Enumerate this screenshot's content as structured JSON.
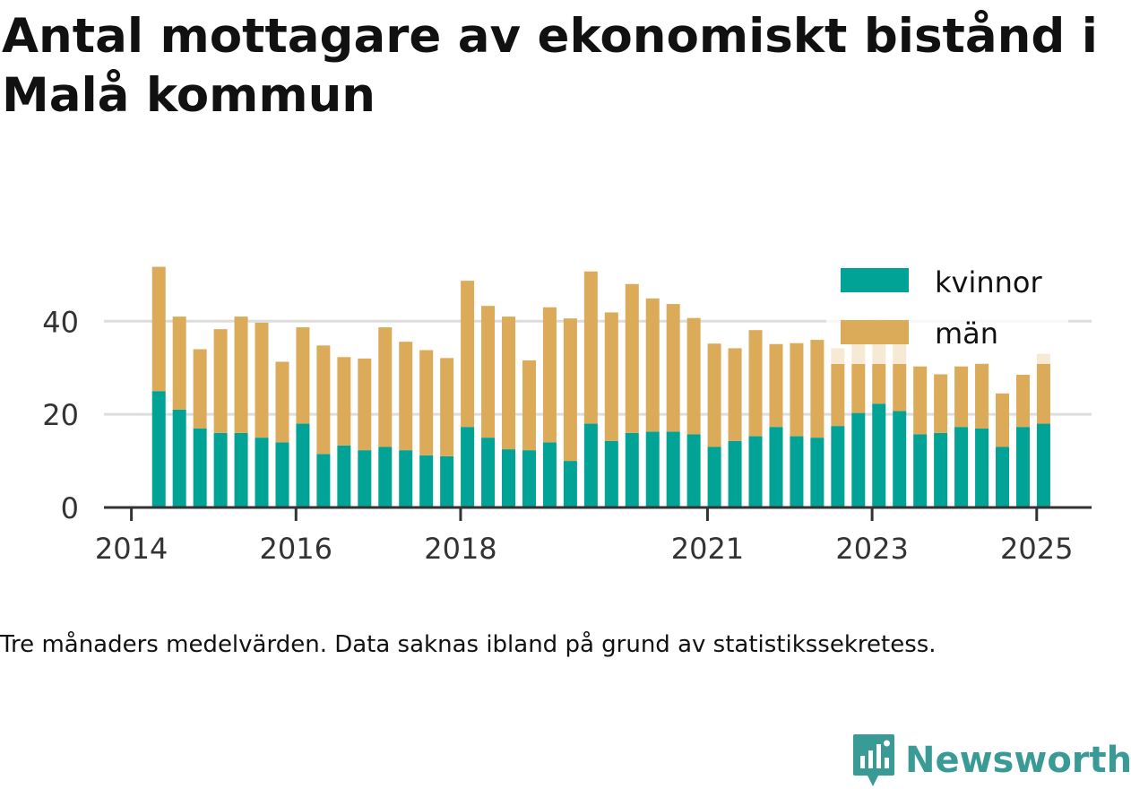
{
  "title": "Antal mottagare av ekonomiskt bistånd i Malå kommun",
  "note": "Tre månaders medelvärden. Data saknas ibland på grund av statistikssekretess.",
  "brand": {
    "name": "Newsworthy",
    "icon": "newsworthy-logo-icon"
  },
  "colors": {
    "kvinnor": "#00a396",
    "man": "#dcab5a",
    "faded": "#f8ecda",
    "grid": "#dddddd",
    "axis": "#333333"
  },
  "legend": {
    "kvinnor_label": "kvinnor",
    "man_label": "män"
  },
  "chart_data": {
    "type": "bar",
    "stacked": true,
    "legend_position": "top-right",
    "grid": true,
    "y_ticks": [
      "0",
      "20",
      "40"
    ],
    "x_ticks": [
      {
        "label": "2014",
        "date": "2014-01"
      },
      {
        "label": "2016",
        "date": "2016-01"
      },
      {
        "label": "2018",
        "date": "2018-01"
      },
      {
        "label": "2021",
        "date": "2021-01"
      },
      {
        "label": "2023",
        "date": "2023-01"
      },
      {
        "label": "2025",
        "date": "2025-01"
      }
    ],
    "ylim": [
      0,
      52
    ],
    "x_range": [
      "2013-09",
      "2025-09"
    ],
    "periods": [
      "2014-05",
      "2014-08",
      "2014-11",
      "2015-02",
      "2015-05",
      "2015-08",
      "2015-11",
      "2016-02",
      "2016-05",
      "2016-08",
      "2016-11",
      "2017-02",
      "2017-05",
      "2017-08",
      "2017-11",
      "2018-02",
      "2018-05",
      "2018-08",
      "2018-11",
      "2019-02",
      "2019-05",
      "2019-08",
      "2019-11",
      "2020-02",
      "2020-05",
      "2020-08",
      "2020-11",
      "2021-02",
      "2021-05",
      "2021-08",
      "2021-11",
      "2022-02",
      "2022-05",
      "2022-08",
      "2022-11",
      "2023-02",
      "2023-05",
      "2023-08",
      "2023-11",
      "2024-02",
      "2024-05",
      "2024-08",
      "2024-11",
      "2025-02"
    ],
    "series": [
      {
        "name": "kvinnor",
        "values": [
          25,
          21,
          17,
          16,
          16,
          15,
          14,
          18,
          11.5,
          13.3,
          12.3,
          13,
          12.3,
          11.2,
          11,
          17.3,
          15,
          12.5,
          12.3,
          14,
          10,
          18,
          14.3,
          16,
          16.3,
          16.3,
          15.7,
          13,
          14.3,
          15.3,
          17.3,
          15.3,
          15,
          17.5,
          20.3,
          22.3,
          20.7,
          15.7,
          16,
          17.3,
          17,
          13,
          17.3,
          18
        ]
      },
      {
        "name": "män",
        "values": [
          26.7,
          20,
          17,
          22.3,
          25,
          24.7,
          17.3,
          20.7,
          23.3,
          19,
          19.7,
          25.7,
          23.3,
          22.6,
          21.1,
          31.4,
          28.3,
          28.5,
          19.3,
          29,
          30.6,
          32.7,
          27.6,
          32,
          28.6,
          27.4,
          25,
          22.2,
          19.9,
          22.8,
          17.8,
          20,
          21,
          16.7,
          17,
          18,
          15.3,
          14.6,
          12.6,
          13,
          14,
          11.5,
          11.2,
          15
        ]
      }
    ],
    "faded_periods": [
      "2022-11",
      "2023-02",
      "2023-05",
      "2023-08",
      "2023-11",
      "2024-02",
      "2024-05",
      "2024-08",
      "2024-11",
      "2025-02"
    ]
  }
}
